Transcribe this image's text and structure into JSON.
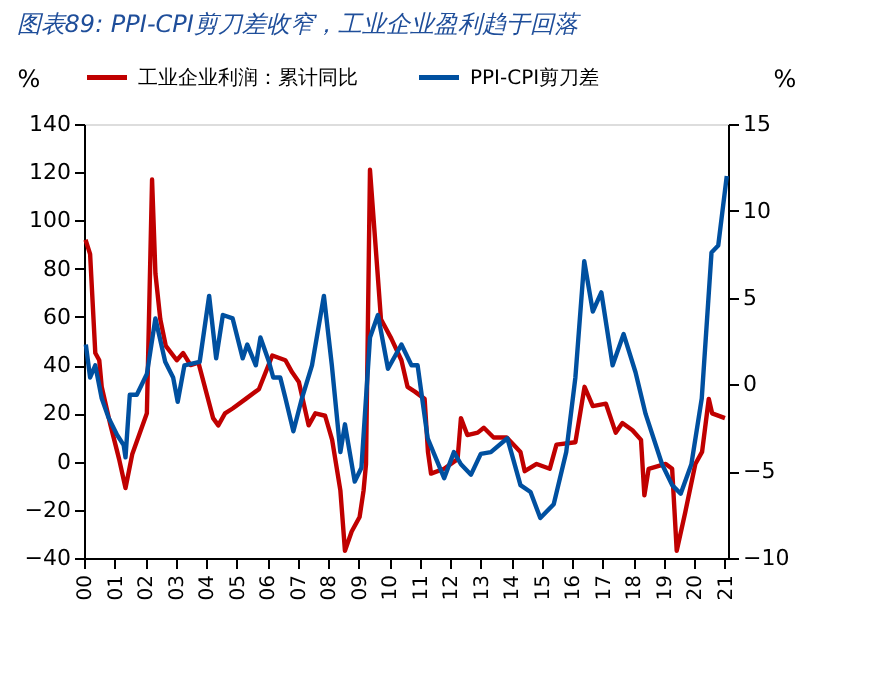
{
  "chart_data": {
    "type": "line",
    "title": "图表89: PPI-CPI剪刀差收窄，工业企业盈利趋于回落",
    "ylabel": "%",
    "y2label": "%",
    "xlim": [
      2000,
      2021.1
    ],
    "xticks": [
      {
        "value": 2000,
        "label": "00"
      },
      {
        "value": 2001,
        "label": "01"
      },
      {
        "value": 2002,
        "label": "02"
      },
      {
        "value": 2003,
        "label": "03"
      },
      {
        "value": 2004,
        "label": "04"
      },
      {
        "value": 2005,
        "label": "05"
      },
      {
        "value": 2006,
        "label": "06"
      },
      {
        "value": 2007,
        "label": "07"
      },
      {
        "value": 2008,
        "label": "08"
      },
      {
        "value": 2009,
        "label": "09"
      },
      {
        "value": 2010,
        "label": "10"
      },
      {
        "value": 2011,
        "label": "11"
      },
      {
        "value": 2012,
        "label": "12"
      },
      {
        "value": 2013,
        "label": "13"
      },
      {
        "value": 2014,
        "label": "14"
      },
      {
        "value": 2015,
        "label": "15"
      },
      {
        "value": 2016,
        "label": "16"
      },
      {
        "value": 2017,
        "label": "17"
      },
      {
        "value": 2018,
        "label": "18"
      },
      {
        "value": 2019,
        "label": "19"
      },
      {
        "value": 2020,
        "label": "20"
      },
      {
        "value": 2021,
        "label": "21"
      }
    ],
    "ylim": [
      -40,
      140
    ],
    "yticks": [
      -40,
      -20,
      0,
      20,
      40,
      60,
      80,
      100,
      120,
      140
    ],
    "y2lim": [
      -10,
      15
    ],
    "y2ticks": [
      -10,
      -5,
      0,
      5,
      10,
      15
    ],
    "grid": false,
    "legend": "top",
    "line_style": "solid",
    "marker": "none",
    "series": [
      {
        "name": "工业企业利润：累计同比",
        "color": "#c00000",
        "x": [
          2000.05,
          2000.2,
          2000.37,
          2000.5,
          2000.58,
          2000.87,
          2001.15,
          2001.36,
          2001.58,
          2002.06,
          2002.23,
          2002.34,
          2002.5,
          2002.68,
          2003.04,
          2003.25,
          2003.49,
          2003.75,
          2004.23,
          2004.4,
          2004.62,
          2004.87,
          2005.3,
          2005.73,
          2006.17,
          2006.6,
          2006.82,
          2007.04,
          2007.36,
          2007.58,
          2007.9,
          2008.13,
          2008.4,
          2008.55,
          2008.77,
          2009.03,
          2009.16,
          2009.24,
          2009.37,
          2009.73,
          2010.07,
          2010.4,
          2010.6,
          2010.84,
          2011.16,
          2011.27,
          2011.37,
          2011.8,
          2012.24,
          2012.35,
          2012.56,
          2012.9,
          2013.1,
          2013.42,
          2013.85,
          2014.3,
          2014.44,
          2014.83,
          2015.26,
          2015.48,
          2016.1,
          2016.4,
          2016.67,
          2017.1,
          2017.42,
          2017.64,
          2017.97,
          2018.25,
          2018.36,
          2018.5,
          2019.06,
          2019.27,
          2019.42,
          2019.7,
          2020.03,
          2020.25,
          2020.47,
          2020.58,
          2021.0
        ],
        "values": [
          92,
          86,
          45,
          42,
          31,
          15,
          1,
          -11,
          3,
          20,
          117,
          78,
          59,
          48,
          42,
          45,
          40,
          41,
          18,
          15,
          20,
          22,
          26,
          30,
          44,
          42,
          37,
          33,
          15,
          20,
          19,
          9,
          -12,
          -37,
          -29,
          -23,
          -12,
          -1,
          121,
          59,
          51,
          42,
          31,
          29,
          26,
          4,
          -5,
          -3,
          1,
          18,
          11,
          12,
          14,
          10,
          10,
          4,
          -4,
          -1,
          -3,
          7,
          8,
          31,
          23,
          24,
          12,
          16,
          13,
          9,
          -14,
          -3,
          -1,
          -3,
          -37,
          -21,
          -1,
          4,
          26,
          20,
          18
        ]
      },
      {
        "name": "PPI-CPI剪刀差",
        "color": "#0050a0",
        "axis": "y2",
        "x": [
          2000.06,
          2000.2,
          2000.37,
          2000.58,
          2000.8,
          2001.08,
          2001.3,
          2001.36,
          2001.5,
          2001.73,
          2002.06,
          2002.34,
          2002.66,
          2002.92,
          2003.07,
          2003.29,
          2003.79,
          2004.1,
          2004.33,
          2004.55,
          2004.87,
          2005.2,
          2005.35,
          2005.63,
          2005.78,
          2006.06,
          2006.2,
          2006.43,
          2006.6,
          2006.86,
          2007.14,
          2007.47,
          2007.86,
          2008.12,
          2008.4,
          2008.55,
          2008.87,
          2009.09,
          2009.37,
          2009.63,
          2009.96,
          2010.4,
          2010.73,
          2010.93,
          2011.26,
          2011.47,
          2011.8,
          2012.12,
          2012.35,
          2012.68,
          2013.0,
          2013.33,
          2013.87,
          2014.3,
          2014.63,
          2014.95,
          2015.39,
          2015.8,
          2016.1,
          2016.39,
          2016.67,
          2016.95,
          2017.32,
          2017.68,
          2018.07,
          2018.4,
          2018.94,
          2019.27,
          2019.55,
          2019.9,
          2020.24,
          2020.56,
          2020.78,
          2021.06
        ],
        "values": [
          2.3,
          0.4,
          1.1,
          -0.8,
          -1.9,
          -2.9,
          -3.5,
          -4.2,
          -0.6,
          -0.6,
          0.6,
          3.8,
          1.3,
          0.4,
          -1.0,
          1.1,
          1.3,
          5.1,
          1.5,
          4.0,
          3.8,
          1.5,
          2.3,
          1.1,
          2.7,
          1.3,
          0.4,
          0.4,
          -0.8,
          -2.7,
          -0.8,
          1.1,
          5.1,
          1.1,
          -3.9,
          -2.3,
          -5.6,
          -4.8,
          2.7,
          4.0,
          0.9,
          2.3,
          1.1,
          1.1,
          -3.1,
          -4.0,
          -5.4,
          -3.9,
          -4.6,
          -5.2,
          -4.0,
          -3.9,
          -3.1,
          -5.8,
          -6.2,
          -7.7,
          -6.9,
          -3.9,
          0.4,
          7.1,
          4.2,
          5.3,
          1.1,
          2.9,
          0.7,
          -1.7,
          -4.6,
          -5.8,
          -6.3,
          -4.6,
          -0.8,
          7.6,
          8.0,
          12.0
        ]
      }
    ]
  }
}
